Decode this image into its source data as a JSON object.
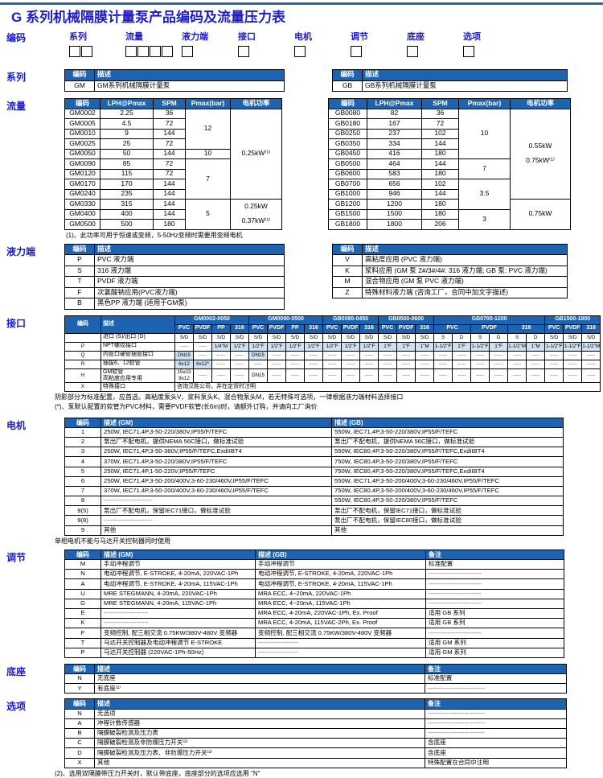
{
  "title": "G 系列机械隔膜计量泵产品编码及流量压力表",
  "colors": {
    "header_blue": "#1e63b0",
    "shade_blue": "#cfe2f2",
    "title_blue": "#1d1dc6",
    "rule_blue": "#2b63ad"
  },
  "sections": {
    "code": "编码",
    "series": "系列",
    "flow": "流量",
    "liquid": "液力端",
    "interface": "接口",
    "motor": "电机",
    "adjust": "调节",
    "base": "底座",
    "option": "选项"
  },
  "code_row": {
    "items": [
      {
        "label": "系列",
        "boxes": 2
      },
      {
        "label": "流量",
        "boxes": 4
      },
      {
        "label": "液力端",
        "boxes": 1
      },
      {
        "label": "接口",
        "boxes": 1
      },
      {
        "label": "电机",
        "boxes": 1
      },
      {
        "label": "调节",
        "boxes": 1
      },
      {
        "label": "底座",
        "boxes": 1
      },
      {
        "label": "选项",
        "boxes": 1
      }
    ]
  },
  "notes": {
    "flow": "(1)、此功率可用于恒速或变频，5-50Hz变频时需要用变频电机",
    "interface_shade": "阴影部分为标准配置，应首选。高粘度泵头V、浆料泵头K、混合物泵头M，若无特殊可选项，一律根据液力端材料选择接口",
    "interface_hose": "(*)、泵默认配置的软管为PVC材料，需要PVDF软管(长6m)时，请额外订购，并请向工厂询价",
    "motor": "单相电机不能与马达开关控制器同时使用",
    "option": "(2)、选用双隔膜带压力开关时，默认带底座，底座部分的选项应选用 \"N\""
  },
  "tables": {
    "series_gm": {
      "widths": [
        37,
        236
      ],
      "colcls": [
        "",
        "l"
      ],
      "rows": [
        [
          {
            "t": "编码",
            "c": "h"
          },
          {
            "t": "描述",
            "c": "h l"
          }
        ],
        [
          "GM",
          "GM系列机械隔膜计量泵"
        ]
      ]
    },
    "series_gb": {
      "widths": [
        37,
        255
      ],
      "colcls": [
        "",
        "l"
      ],
      "rows": [
        [
          {
            "t": "编码",
            "c": "h"
          },
          {
            "t": "描述",
            "c": "h l"
          }
        ],
        [
          "GB",
          "GB系列机械隔膜计量泵"
        ]
      ]
    },
    "flow_gm": {
      "widths": [
        44,
        66,
        40,
        56,
        64
      ],
      "colcls": [],
      "rows": [
        [
          {
            "t": "编码",
            "c": "h"
          },
          {
            "t": "LPH@Pmax",
            "c": "h"
          },
          {
            "t": "SPM",
            "c": "h"
          },
          {
            "t": "Pmax(bar)",
            "c": "h"
          },
          {
            "t": "电机功率",
            "c": "h"
          }
        ],
        [
          "GM0002",
          "2.25",
          "36",
          {
            "t": "12",
            "rs": 4
          },
          {
            "t": "0.25kW⁽¹⁾",
            "rs": 9
          }
        ],
        [
          "GM0005",
          "4.5",
          "72"
        ],
        [
          "GM0010",
          "9",
          "144"
        ],
        [
          "GM0025",
          "25",
          "72"
        ],
        [
          "GM0050",
          "50",
          "144",
          "10"
        ],
        [
          "GM0090",
          "85",
          "72",
          {
            "t": "7",
            "rs": 4
          }
        ],
        [
          "GM0120",
          "115",
          "72"
        ],
        [
          "GM0170",
          "170",
          "144"
        ],
        [
          "GM0240",
          "235",
          "144"
        ],
        [
          "GM0330",
          "315",
          "144",
          {
            "t": "5",
            "rs": 3
          },
          {
            "t": "0.25kW\n0.37kW⁽¹⁾",
            "rs": 3,
            "c": "sp"
          }
        ],
        [
          "GM0400",
          "400",
          "144"
        ],
        [
          "GM0500",
          "500",
          "180"
        ]
      ]
    },
    "flow_gb": {
      "widths": [
        48,
        68,
        46,
        64,
        75
      ],
      "colcls": [],
      "rows": [
        [
          {
            "t": "编码",
            "c": "h"
          },
          {
            "t": "LPH@Pmax",
            "c": "h"
          },
          {
            "t": "SPM",
            "c": "h"
          },
          {
            "t": "Pmax(bar)",
            "c": "h"
          },
          {
            "t": "电机功率",
            "c": "h"
          }
        ],
        [
          "GB0080",
          "82",
          "36",
          {
            "t": "10",
            "rs": 5
          },
          {
            "t": "0.55kW\n0.75kW⁽¹⁾",
            "rs": 9,
            "c": "sp"
          }
        ],
        [
          "GB0180",
          "167",
          "72"
        ],
        [
          "GB0250",
          "237",
          "102"
        ],
        [
          "GB0350",
          "334",
          "144"
        ],
        [
          "GB0450",
          "416",
          "180"
        ],
        [
          "GB0500",
          "464",
          "144",
          {
            "t": "7",
            "rs": 2
          }
        ],
        [
          "GB0600",
          "583",
          "180"
        ],
        [
          "GB0700",
          "656",
          "102",
          {
            "t": "3.5",
            "rs": 3
          }
        ],
        [
          "GB1000",
          "946",
          "144"
        ],
        [
          "GB1200",
          "1200",
          "180",
          {
            "t": "0.75kW",
            "rs": 3
          }
        ],
        [
          "GB1500",
          "1500",
          "180",
          {
            "t": "3",
            "rs": 2
          }
        ],
        [
          "GB1800",
          "1800",
          "206"
        ]
      ]
    },
    "liquid_gm": {
      "widths": [
        37,
        236
      ],
      "colcls": [
        "",
        "l"
      ],
      "rows": [
        [
          {
            "t": "编码",
            "c": "h"
          },
          {
            "t": "描述",
            "c": "h l"
          }
        ],
        [
          "P",
          "PVC 液力端"
        ],
        [
          "S",
          "316 液力端"
        ],
        [
          "T",
          "PVDF 液力端"
        ],
        [
          "F",
          "次氯酸钠应用(PVC液力端)"
        ],
        [
          "B",
          "黑色PP 液力端 (适用于GM泵)"
        ]
      ]
    },
    "liquid_gb": {
      "widths": [
        37,
        255
      ],
      "colcls": [
        "",
        "l"
      ],
      "rows": [
        [
          {
            "t": "编码",
            "c": "h"
          },
          {
            "t": "描述",
            "c": "h l"
          }
        ],
        [
          "V",
          "高粘度应用 (PVC 液力端)"
        ],
        [
          "K",
          "浆料应用 (GM 泵 2#/3#/4#: 316 液力端; GB 泵: PVC 液力端)"
        ],
        [
          "M",
          "混合物应用 (GM 泵 PVC 液力端)"
        ],
        [
          "Z",
          "特殊材料液力端 (咨询工厂，合同中加文字描述)"
        ]
      ]
    },
    "interface": {
      "widths": [
        45,
        92,
        23,
        23,
        23,
        23,
        23,
        23,
        23,
        23,
        23,
        23,
        23,
        23,
        23,
        23,
        23,
        23,
        23,
        23,
        23,
        23,
        23,
        23,
        23
      ],
      "colcls": [
        "",
        "l"
      ],
      "rows": [
        [
          {
            "t": "编码",
            "c": "h",
            "rs": 2
          },
          {
            "t": "描述",
            "c": "h l",
            "rs": 2
          },
          {
            "t": "GM0002-0050",
            "cs": 4,
            "c": "h"
          },
          {
            "t": "GM0090-0500",
            "cs": 4,
            "c": "h"
          },
          {
            "t": "GB0080-0450",
            "cs": 3,
            "c": "h"
          },
          {
            "t": "GB0500-0600",
            "cs": 3,
            "c": "h"
          },
          {
            "t": "GB0700-1200",
            "cs": 6,
            "c": "h"
          },
          {
            "t": "GB1500-1800",
            "cs": 3,
            "c": "h"
          }
        ],
        [
          {
            "t": "PVC",
            "c": "h"
          },
          {
            "t": "PVDF",
            "c": "h"
          },
          {
            "t": "PP",
            "c": "h"
          },
          {
            "t": "316",
            "c": "h"
          },
          {
            "t": "PVC",
            "c": "h"
          },
          {
            "t": "PVDF",
            "c": "h"
          },
          {
            "t": "PP",
            "c": "h"
          },
          {
            "t": "316",
            "c": "h"
          },
          {
            "t": "PVC",
            "c": "h"
          },
          {
            "t": "PVDF",
            "c": "h"
          },
          {
            "t": "316",
            "c": "h"
          },
          {
            "t": "PVC",
            "c": "h"
          },
          {
            "t": "PVDF",
            "c": "h"
          },
          {
            "t": "316",
            "c": "h"
          },
          {
            "t": "PVC",
            "cs": 2,
            "c": "h"
          },
          {
            "t": "PVDF",
            "cs": 2,
            "c": "h"
          },
          {
            "t": "316",
            "cs": 2,
            "c": "h"
          },
          {
            "t": "PVC",
            "c": "h"
          },
          {
            "t": "PVDF",
            "c": "h"
          },
          {
            "t": "316",
            "c": "h"
          }
        ],
        [
          "",
          "进口 (S)/出口 (D)",
          "S/D",
          "S/D",
          "S/D",
          "S/D",
          "S/D",
          "S/D",
          "S/D",
          "S/D",
          "S/D",
          "S/D",
          "S/D",
          "S/D",
          "S/D",
          "S/D",
          "S",
          "D",
          "S",
          "D",
          "S",
          "D",
          "S/D",
          "S/D",
          "S/D"
        ],
        [
          "P",
          "NPT螺纹接口",
          "-----",
          "-----",
          {
            "t": "1/4\"M",
            "c": "sh"
          },
          {
            "t": "1/2\"F",
            "c": "sh"
          },
          {
            "t": "1/2\"F",
            "c": "sh"
          },
          {
            "t": "1/2\"F",
            "c": "sh"
          },
          {
            "t": "1/2\"F",
            "c": "sh"
          },
          {
            "t": "1/2\"F",
            "c": "sh"
          },
          {
            "t": "1/2\"F",
            "c": "sh"
          },
          {
            "t": "1/2\"F",
            "c": "sh"
          },
          {
            "t": "1/2\"F",
            "c": "sh"
          },
          {
            "t": "1\"F",
            "c": "sh"
          },
          {
            "t": "1\"F",
            "c": "sh"
          },
          {
            "t": "1\"M",
            "c": "sh"
          },
          {
            "t": "1-1/2\"F",
            "c": "sh"
          },
          {
            "t": "1\"F",
            "c": "sh"
          },
          {
            "t": "1-1/2\"F",
            "c": "sh"
          },
          {
            "t": "1\"F",
            "c": "sh"
          },
          {
            "t": "1-1/2\"M",
            "c": "sh"
          },
          {
            "t": "1\"M",
            "c": "sh"
          },
          {
            "t": "1-1/2\"F",
            "c": "sh"
          },
          {
            "t": "1-1/2\"F",
            "c": "sh"
          },
          {
            "t": "1-1/2\"M",
            "c": "sh"
          }
        ],
        [
          "Q",
          "内管口硬管插管接口",
          {
            "t": "DN15",
            "c": "sh"
          },
          "-----",
          "-----",
          "-----",
          {
            "t": "DN15",
            "c": "sh"
          },
          "-----",
          "-----",
          "-----",
          "-----",
          "-----",
          "-----",
          "-----",
          "-----",
          "-----",
          "-----",
          "-----",
          "-----",
          "-----",
          "-----",
          "-----",
          "-----",
          "-----",
          "-----"
        ],
        [
          "R",
          "插拔6、12软管",
          {
            "t": "6x12",
            "c": "sh"
          },
          {
            "t": "6x12*",
            "c": "sh"
          },
          "-----",
          "-----",
          "-----",
          "-----",
          "-----",
          "-----",
          "-----",
          "-----",
          "-----",
          "-----",
          "-----",
          "-----",
          "-----",
          "-----",
          "-----",
          "-----",
          "-----",
          "-----",
          "-----",
          "-----",
          "-----"
        ],
        [
          "H",
          "GM软管\n高粘度应用专用",
          "15x23\n9x12",
          "-----",
          "-----",
          "-----",
          "DN15",
          "-----",
          "-----",
          "-----",
          "-----",
          "-----",
          "-----",
          "-----",
          "-----",
          "-----",
          "-----",
          "-----",
          "-----",
          "-----",
          "-----",
          "-----",
          "-----",
          "-----",
          "-----"
        ],
        [
          "X",
          "特殊接口",
          {
            "t": "咨询汉胜公司，并在定货时注明",
            "cs": 23,
            "c": "l"
          }
        ]
      ]
    },
    "motor": {
      "widths": [
        45,
        287,
        288
      ],
      "colcls": [
        "",
        "l",
        "l"
      ],
      "rows": [
        [
          {
            "t": "编码",
            "c": "h"
          },
          {
            "t": "描述 (GM)",
            "c": "h l"
          },
          {
            "t": "描述 (GB)",
            "c": "h l"
          }
        ],
        [
          "1",
          "250W, IEC71,4P,3-50-220/380V,IP55/F/TEFC",
          "550W, IEC71,4P,3-50-220/380V,IP55/F/TEFC"
        ],
        [
          "2",
          "泵出厂不配电机，提供NEMA 56C接口，做标准试验",
          "泵出厂不配电机，提供NEMA 56C接口，做标准试验"
        ],
        [
          "3",
          "250W, IEC71,4P,3-50-380V,IP55/F/TEFC,ExdIIBT4",
          "550W, IEC80,4P,3-50-220/380V,IP55/F/TEFC,ExdIIBT4"
        ],
        [
          "4",
          "370W, IEC71,4P,3-50-220/380V,IP55/F/TEFC",
          "750W, IEC80,4P,3-50-220/380V,IP55/F/TEFC"
        ],
        [
          "5",
          "250W, IEC71,4P,1-50-220V,IP55/F/TEFC",
          "750W, IEC80,4P,3-50-220/380V,IP55/F/TEFC,ExdIIBT4"
        ],
        [
          "6",
          "250W, IEC71,4P,3-50-200/400V,3-60-230/460V,IP55/F/TEFC",
          "550W, IEC71,4P,3-50-200/400V,3-60-230/460V,IP55/F/TEFC"
        ],
        [
          "7",
          "370W, IEC71,4P,3-50-200/400V,3-60-230/460V,IP55/F/TEFC",
          "750W, IEC80,4P,3-50-200/400V,3-60-230/460V,IP55/F/TEFC"
        ],
        [
          "8",
          "------------------------",
          "550W, IEC80,4P,3-50-220/380V,IP55/F/TEFC"
        ],
        [
          "9(5)",
          "泵出厂不配电机，保留IEC71接口，做标准试验",
          "泵出厂不配电机，保留IEC71接口，做标准试验"
        ],
        [
          "9(8)",
          "------------------------",
          "泵出厂不配电机，保留IEC80接口，做标准试验"
        ],
        [
          "9",
          "其他",
          "其他"
        ]
      ]
    },
    "adjust": {
      "widths": [
        45,
        192,
        212,
        172
      ],
      "colcls": [
        "",
        "l",
        "l",
        "l"
      ],
      "rows": [
        [
          {
            "t": "编码",
            "c": "h"
          },
          {
            "t": "描述 (GM)",
            "c": "h l"
          },
          {
            "t": "描述 (GB)",
            "c": "h l"
          },
          {
            "t": "备注",
            "c": "h l"
          }
        ],
        [
          "M",
          "手动冲程调节",
          "手动冲程调节",
          "标准配置"
        ],
        [
          "N",
          "电动冲程调节, E-STROKE, 4-20mA, 220VAC-1Ph",
          "电动冲程调节, E-STROKE, 4-20mA, 220VAC-1Ph",
          "--------------------------"
        ],
        [
          "A",
          "电动冲程调节, E-STROKE, 4-20mA, 115VAC-1Ph",
          "电动冲程调节, E-STROKE, 4-20mA, 115VAC-1Ph",
          "--------------------------"
        ],
        [
          "U",
          "MRE STEGMANN, 4-20mA, 220VAC-1Ph",
          "MRA ECC, 4~20mA, 220VAC-1Ph",
          "--------------------------"
        ],
        [
          "G",
          "MRE STEGMANN, 4-20mA, 115VAC-1Ph",
          "MRA ECC, 4~20mA, 115VAC-1Ph",
          "--------------------------"
        ],
        [
          "E",
          "----------------------",
          "MRA ECC, 4-20mA, 220VAC-1Ph, Ex. Proof",
          "适用 GB 系列"
        ],
        [
          "K",
          "----------------------",
          "MRA ECC, 4-20mA, 115VAC-2Ph, Ex. Proof",
          "适用 GB 系列"
        ],
        [
          "F",
          "变频控制, 配三相交流 0.75KW/380V-480V 变频器",
          "变频控制, 配三相交流 0.75KW/380V-480V 变频器",
          "--------------------------"
        ],
        [
          "T",
          "马达开关控制器及电动冲程调节 E-STROKE",
          "--------------------",
          "适用 GM 系列"
        ],
        [
          "P",
          "马达开关控制器  (220VAC-1Ph-50Hz)",
          "--------------------",
          "适用 GM 系列"
        ]
      ]
    },
    "base": {
      "widths": [
        37,
        411,
        176
      ],
      "colcls": [
        "",
        "l",
        "l"
      ],
      "rows": [
        [
          {
            "t": "编码",
            "c": "h"
          },
          {
            "t": "描述",
            "c": "h l"
          },
          {
            "t": "备注",
            "c": "h l"
          }
        ],
        [
          "N",
          "无底座",
          "标准配置"
        ],
        [
          "Y",
          "有底座⁽²⁾",
          "----------------------------"
        ]
      ]
    },
    "option": {
      "widths": [
        37,
        411,
        176
      ],
      "colcls": [
        "",
        "l",
        "l"
      ],
      "rows": [
        [
          {
            "t": "编码",
            "c": "h"
          },
          {
            "t": "描述",
            "c": "h l"
          },
          {
            "t": "备注",
            "c": "h l"
          }
        ],
        [
          "N",
          "无选项",
          "----------------------------"
        ],
        [
          "A",
          "冲程计数传感器",
          "----------------------------"
        ],
        [
          "B",
          "隔膜破裂检测及压力表",
          "----------------------------"
        ],
        [
          "C",
          "隔膜破裂检测及非防爆压力开关⁽²⁾",
          "含底座"
        ],
        [
          "D",
          "隔膜破裂检测及压力表、非防爆压力开关⁽²⁾",
          "含底座"
        ],
        [
          "X",
          "其他",
          "特殊配置在合同中注明"
        ]
      ]
    }
  }
}
